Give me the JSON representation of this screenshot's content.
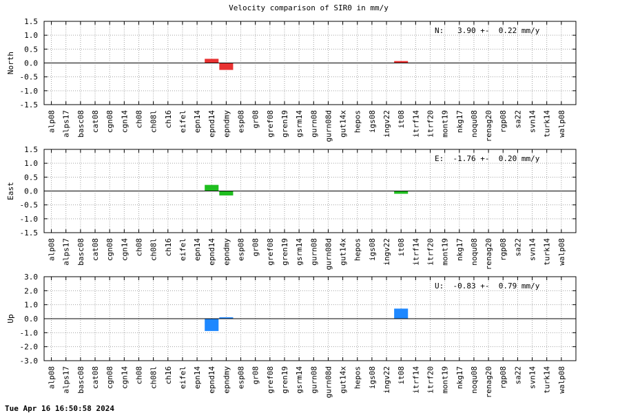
{
  "title": "Velocity comparison of SIR0 in mm/y",
  "timestamp": "Tue Apr 16 16:50:58 2024",
  "colors": {
    "north": "#e83232",
    "east": "#1fbe1f",
    "up": "#1e88ff",
    "grid": "#a0a0a0",
    "axis": "#000000"
  },
  "chart_data": [
    {
      "type": "bar",
      "panel": "north",
      "ylabel": "North",
      "stat": "N:   3.90 +-  0.22 mm/y",
      "ylim": [
        -1.5,
        1.5
      ],
      "yticks": [
        1.5,
        1.0,
        0.5,
        0.0,
        -0.5,
        -1.0,
        -1.5
      ],
      "ytick_labels": [
        "1.5",
        "1.0",
        "0.5",
        "0.0",
        "-0.5",
        "-1.0",
        "-1.5"
      ],
      "categories": [
        "alp08",
        "alps17",
        "basc08",
        "cat08",
        "cgn08",
        "cgn14",
        "ch08",
        "ch08l",
        "ch16",
        "eifel",
        "epn14",
        "epnd14",
        "epndmy",
        "esp08",
        "gr08",
        "gref08",
        "gren19",
        "gsrm14",
        "gurn08",
        "gurn08d",
        "gut14x",
        "hepos",
        "igs08",
        "ingv22",
        "it08",
        "itrf14",
        "itrf20",
        "mont19",
        "nkg17",
        "noqu08",
        "renag20",
        "rgp08",
        "sa22",
        "svn14",
        "turk14",
        "walp08"
      ],
      "values": [
        0,
        0,
        0,
        0,
        0,
        0,
        0,
        0,
        0,
        0,
        0,
        0.15,
        -0.25,
        0,
        0,
        0,
        0,
        0,
        0,
        0,
        0,
        0,
        0,
        0,
        0.07,
        0,
        0,
        0,
        0,
        0,
        0,
        0,
        0,
        0,
        0,
        0
      ]
    },
    {
      "type": "bar",
      "panel": "east",
      "ylabel": "East",
      "stat": "E:  -1.76 +-  0.20 mm/y",
      "ylim": [
        -1.5,
        1.5
      ],
      "yticks": [
        1.5,
        1.0,
        0.5,
        0.0,
        -0.5,
        -1.0,
        -1.5
      ],
      "ytick_labels": [
        "1.5",
        "1.0",
        "0.5",
        "0.0",
        "-0.5",
        "-1.0",
        "-1.5"
      ],
      "categories": [
        "alp08",
        "alps17",
        "basc08",
        "cat08",
        "cgn08",
        "cgn14",
        "ch08",
        "ch08l",
        "ch16",
        "eifel",
        "epn14",
        "epnd14",
        "epndmy",
        "esp08",
        "gr08",
        "gref08",
        "gren19",
        "gsrm14",
        "gurn08",
        "gurn08d",
        "gut14x",
        "hepos",
        "igs08",
        "ingv22",
        "it08",
        "itrf14",
        "itrf20",
        "mont19",
        "nkg17",
        "noqu08",
        "renag20",
        "rgp08",
        "sa22",
        "svn14",
        "turk14",
        "walp08"
      ],
      "values": [
        0,
        0,
        0,
        0,
        0,
        0,
        0,
        0,
        0,
        0,
        0,
        0.22,
        -0.16,
        0,
        0,
        0,
        0,
        0,
        0,
        0,
        0,
        0,
        0,
        0,
        -0.1,
        0,
        0,
        0,
        0,
        0,
        0,
        0,
        0,
        0,
        0,
        0
      ]
    },
    {
      "type": "bar",
      "panel": "up",
      "ylabel": "Up",
      "stat": "U:  -0.83 +-  0.79 mm/y",
      "ylim": [
        -3.0,
        3.0
      ],
      "yticks": [
        3.0,
        2.0,
        1.0,
        0.0,
        -1.0,
        -2.0,
        -3.0
      ],
      "ytick_labels": [
        "3.0",
        "2.0",
        "1.0",
        "0.0",
        "-1.0",
        "-2.0",
        "-3.0"
      ],
      "categories": [
        "alp08",
        "alps17",
        "basc08",
        "cat08",
        "cgn08",
        "cgn14",
        "ch08",
        "ch08l",
        "ch16",
        "eifel",
        "epn14",
        "epnd14",
        "epndmy",
        "esp08",
        "gr08",
        "gref08",
        "gren19",
        "gsrm14",
        "gurn08",
        "gurn08d",
        "gut14x",
        "hepos",
        "igs08",
        "ingv22",
        "it08",
        "itrf14",
        "itrf20",
        "mont19",
        "nkg17",
        "noqu08",
        "renag20",
        "rgp08",
        "sa22",
        "svn14",
        "turk14",
        "walp08"
      ],
      "values": [
        0,
        0,
        0,
        0,
        0,
        0,
        0,
        0,
        0,
        0,
        0,
        -0.88,
        0.1,
        0,
        0,
        0,
        0,
        0,
        0,
        0,
        0,
        0,
        0,
        0,
        0.72,
        0,
        0,
        0,
        0,
        0,
        0,
        0,
        0,
        0,
        0,
        0
      ]
    }
  ]
}
